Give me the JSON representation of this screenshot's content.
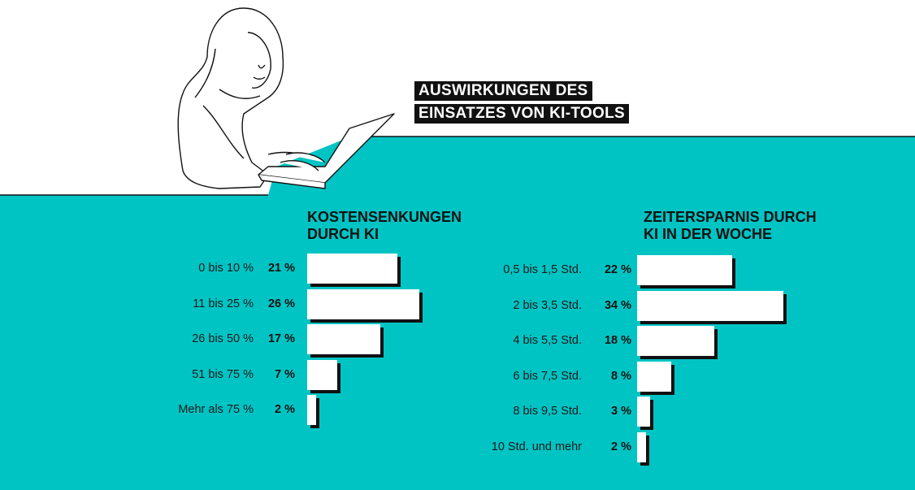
{
  "colors": {
    "background": "#00c4c4",
    "bar": "#ffffff",
    "text": "#111111"
  },
  "title": {
    "line1": "AUSWIRKUNGEN DES",
    "line2": "EINSATZES VON KI-TOOLS"
  },
  "illustration": "woman-working-on-laptop",
  "chart_data": [
    {
      "type": "bar",
      "orientation": "horizontal",
      "title_line1": "KOSTENSENKUNGEN",
      "title_line2": "DURCH KI",
      "categories": [
        "0 bis 10 %",
        "11 bis 25 %",
        "26 bis 50 %",
        "51 bis 75 %",
        "Mehr als 75 %"
      ],
      "values": [
        21,
        26,
        17,
        7,
        2
      ],
      "value_labels": [
        "21 %",
        "26 %",
        "17 %",
        "7 %",
        "2 %"
      ],
      "unit": "%"
    },
    {
      "type": "bar",
      "orientation": "horizontal",
      "title_line1": "ZEITERSPARNIS DURCH",
      "title_line2": "KI IN DER WOCHE",
      "categories": [
        "0,5 bis 1,5 Std.",
        "2 bis 3,5 Std.",
        "4 bis 5,5 Std.",
        "6 bis 7,5 Std.",
        "8 bis 9,5 Std.",
        "10 Std. und mehr"
      ],
      "values": [
        22,
        34,
        18,
        8,
        3,
        2
      ],
      "value_labels": [
        "22 %",
        "34 %",
        "18 %",
        "8 %",
        "3 %",
        "2 %"
      ],
      "unit": "%"
    }
  ]
}
